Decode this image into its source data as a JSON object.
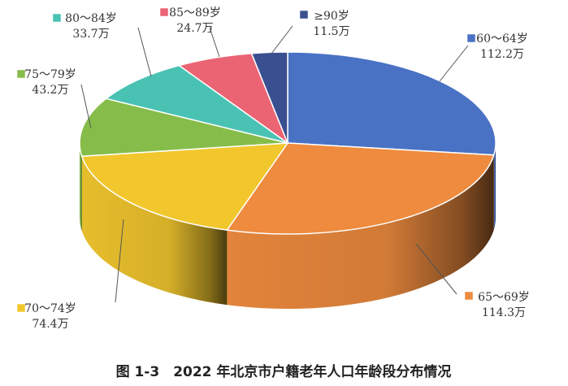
{
  "chart_data": {
    "type": "pie",
    "title": "图 1-3　2022 年北京市户籍老年人口年龄段分布情况",
    "categories": [
      "60～64岁",
      "65～69岁",
      "70～74岁",
      "75～79岁",
      "80～84岁",
      "85～89岁",
      "≥90岁"
    ],
    "values": [
      112.2,
      114.3,
      74.4,
      43.2,
      33.7,
      24.7,
      11.5
    ],
    "value_labels": [
      "112.2万",
      "114.3万",
      "74.4万",
      "43.2万",
      "33.7万",
      "24.7万",
      "11.5万"
    ],
    "colors": [
      "#4a72c4",
      "#ee8b3e",
      "#f2c72e",
      "#86bd4a",
      "#49c2b3",
      "#ea6473",
      "#3a4f8f"
    ],
    "legend": "labels beside slices"
  }
}
